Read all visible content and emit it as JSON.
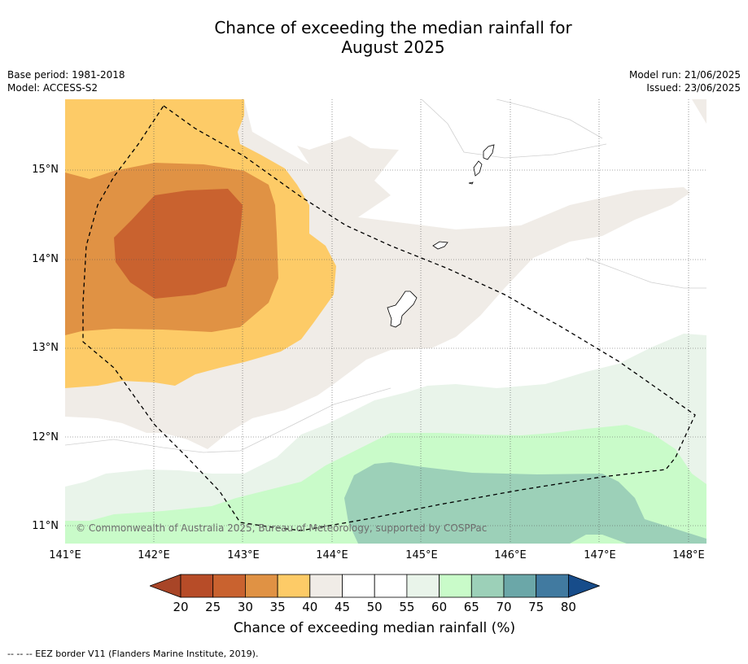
{
  "title": {
    "line1": "Chance of exceeding the median rainfall for",
    "line2": "August 2025"
  },
  "meta": {
    "base_period": "Base period: 1981-2018",
    "model": "Model: ACCESS-S2",
    "model_run": "Model run: 21/06/2025",
    "issued": "Issued: 23/06/2025"
  },
  "map": {
    "lat_labels": [
      "15°N",
      "14°N",
      "13°N",
      "12°N",
      "11°N"
    ],
    "lon_labels": [
      "141°E",
      "142°E",
      "143°E",
      "144°E",
      "145°E",
      "146°E",
      "147°E",
      "148°E"
    ],
    "copyright": "© Commonwealth of Australia 2025, Bureau of Meteorology, supported by COSPPac",
    "colors": {
      "c25_30": "#c9622f",
      "c30_35": "#e09244",
      "c35_40": "#fdcb67",
      "c40_45": "#f0ece7",
      "c45_55": "#ffffff",
      "c55_60": "#e9f4ea",
      "c60_65": "#c9fbc9",
      "c65_70": "#9cd0b8"
    }
  },
  "colorbar": {
    "label": "Chance of exceeding median rainfall (%)",
    "ticks": [
      "20",
      "25",
      "30",
      "35",
      "40",
      "45",
      "50",
      "55",
      "60",
      "65",
      "70",
      "75",
      "80"
    ],
    "colors": [
      "#a84527",
      "#b74c28",
      "#c9622f",
      "#e09244",
      "#fdcb67",
      "#f0ece7",
      "#ffffff",
      "#ffffff",
      "#e9f4ea",
      "#c9fbc9",
      "#9cd0b8",
      "#6ba7a8",
      "#417aa0",
      "#174c8a"
    ]
  },
  "footer": "--  --  -- EEZ border V11 (Flanders Marine Institute, 2019)."
}
